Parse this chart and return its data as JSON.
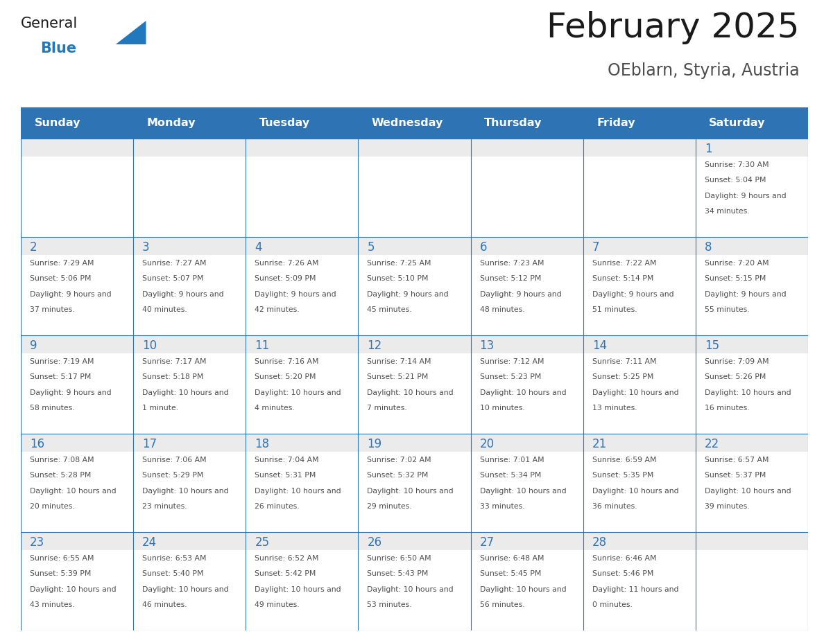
{
  "title": "February 2025",
  "subtitle": "OEblarn, Styria, Austria",
  "days_of_week": [
    "Sunday",
    "Monday",
    "Tuesday",
    "Wednesday",
    "Thursday",
    "Friday",
    "Saturday"
  ],
  "header_bg": "#2E74B5",
  "header_text_color": "#FFFFFF",
  "cell_bg": "#FFFFFF",
  "row_top_bg": "#EBEBEB",
  "cell_border_color": "#2E74B5",
  "day_number_color": "#2E74B5",
  "cell_text_color": "#4d4d4d",
  "title_color": "#1a1a1a",
  "subtitle_color": "#4d4d4d",
  "logo_general_color": "#1a1a1a",
  "logo_blue_color": "#2278bd",
  "calendar": [
    [
      null,
      null,
      null,
      null,
      null,
      null,
      1
    ],
    [
      2,
      3,
      4,
      5,
      6,
      7,
      8
    ],
    [
      9,
      10,
      11,
      12,
      13,
      14,
      15
    ],
    [
      16,
      17,
      18,
      19,
      20,
      21,
      22
    ],
    [
      23,
      24,
      25,
      26,
      27,
      28,
      null
    ]
  ],
  "cell_data": {
    "1": {
      "sunrise": "7:30 AM",
      "sunset": "5:04 PM",
      "daylight": "9 hours and 34 minutes."
    },
    "2": {
      "sunrise": "7:29 AM",
      "sunset": "5:06 PM",
      "daylight": "9 hours and 37 minutes."
    },
    "3": {
      "sunrise": "7:27 AM",
      "sunset": "5:07 PM",
      "daylight": "9 hours and 40 minutes."
    },
    "4": {
      "sunrise": "7:26 AM",
      "sunset": "5:09 PM",
      "daylight": "9 hours and 42 minutes."
    },
    "5": {
      "sunrise": "7:25 AM",
      "sunset": "5:10 PM",
      "daylight": "9 hours and 45 minutes."
    },
    "6": {
      "sunrise": "7:23 AM",
      "sunset": "5:12 PM",
      "daylight": "9 hours and 48 minutes."
    },
    "7": {
      "sunrise": "7:22 AM",
      "sunset": "5:14 PM",
      "daylight": "9 hours and 51 minutes."
    },
    "8": {
      "sunrise": "7:20 AM",
      "sunset": "5:15 PM",
      "daylight": "9 hours and 55 minutes."
    },
    "9": {
      "sunrise": "7:19 AM",
      "sunset": "5:17 PM",
      "daylight": "9 hours and 58 minutes."
    },
    "10": {
      "sunrise": "7:17 AM",
      "sunset": "5:18 PM",
      "daylight": "10 hours and 1 minute."
    },
    "11": {
      "sunrise": "7:16 AM",
      "sunset": "5:20 PM",
      "daylight": "10 hours and 4 minutes."
    },
    "12": {
      "sunrise": "7:14 AM",
      "sunset": "5:21 PM",
      "daylight": "10 hours and 7 minutes."
    },
    "13": {
      "sunrise": "7:12 AM",
      "sunset": "5:23 PM",
      "daylight": "10 hours and 10 minutes."
    },
    "14": {
      "sunrise": "7:11 AM",
      "sunset": "5:25 PM",
      "daylight": "10 hours and 13 minutes."
    },
    "15": {
      "sunrise": "7:09 AM",
      "sunset": "5:26 PM",
      "daylight": "10 hours and 16 minutes."
    },
    "16": {
      "sunrise": "7:08 AM",
      "sunset": "5:28 PM",
      "daylight": "10 hours and 20 minutes."
    },
    "17": {
      "sunrise": "7:06 AM",
      "sunset": "5:29 PM",
      "daylight": "10 hours and 23 minutes."
    },
    "18": {
      "sunrise": "7:04 AM",
      "sunset": "5:31 PM",
      "daylight": "10 hours and 26 minutes."
    },
    "19": {
      "sunrise": "7:02 AM",
      "sunset": "5:32 PM",
      "daylight": "10 hours and 29 minutes."
    },
    "20": {
      "sunrise": "7:01 AM",
      "sunset": "5:34 PM",
      "daylight": "10 hours and 33 minutes."
    },
    "21": {
      "sunrise": "6:59 AM",
      "sunset": "5:35 PM",
      "daylight": "10 hours and 36 minutes."
    },
    "22": {
      "sunrise": "6:57 AM",
      "sunset": "5:37 PM",
      "daylight": "10 hours and 39 minutes."
    },
    "23": {
      "sunrise": "6:55 AM",
      "sunset": "5:39 PM",
      "daylight": "10 hours and 43 minutes."
    },
    "24": {
      "sunrise": "6:53 AM",
      "sunset": "5:40 PM",
      "daylight": "10 hours and 46 minutes."
    },
    "25": {
      "sunrise": "6:52 AM",
      "sunset": "5:42 PM",
      "daylight": "10 hours and 49 minutes."
    },
    "26": {
      "sunrise": "6:50 AM",
      "sunset": "5:43 PM",
      "daylight": "10 hours and 53 minutes."
    },
    "27": {
      "sunrise": "6:48 AM",
      "sunset": "5:45 PM",
      "daylight": "10 hours and 56 minutes."
    },
    "28": {
      "sunrise": "6:46 AM",
      "sunset": "5:46 PM",
      "daylight": "11 hours and 0 minutes."
    }
  }
}
